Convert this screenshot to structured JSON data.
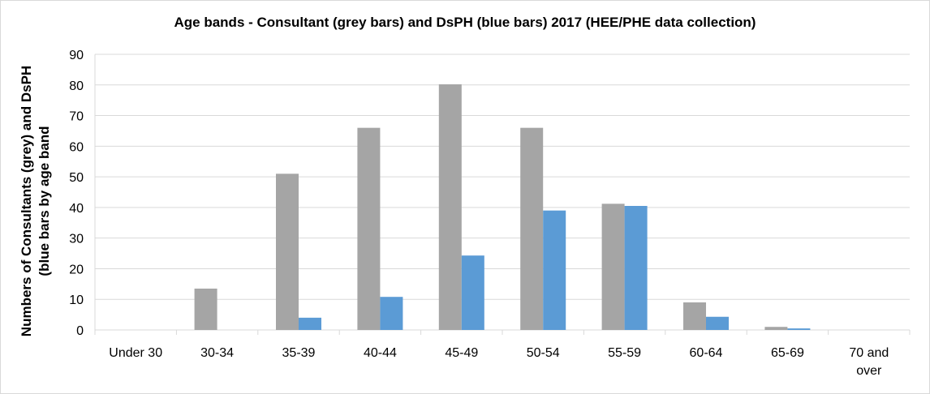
{
  "chart_data": {
    "type": "bar",
    "title": "Age bands - Consultant (grey bars) and DsPH (blue bars) 2017 (HEE/PHE data collection)",
    "ylabel_lines": [
      "Numbers of Consultants (grey) and DsPH",
      "(blue bars by age band"
    ],
    "xlabel": "",
    "categories": [
      "Under 30",
      "30-34",
      "35-39",
      "40-44",
      "45-49",
      "50-54",
      "55-59",
      "60-64",
      "65-69",
      "70 and over"
    ],
    "category_lines": [
      [
        "Under 30"
      ],
      [
        "30-34"
      ],
      [
        "35-39"
      ],
      [
        "40-44"
      ],
      [
        "45-49"
      ],
      [
        "50-54"
      ],
      [
        "55-59"
      ],
      [
        "60-64"
      ],
      [
        "65-69"
      ],
      [
        "70 and",
        "over"
      ]
    ],
    "series": [
      {
        "key": "consultant",
        "color": "#a5a5a5",
        "values": [
          0,
          13.5,
          51,
          66,
          80.2,
          66,
          41.2,
          9,
          1,
          0
        ]
      },
      {
        "key": "dsph",
        "color": "#5b9bd5",
        "values": [
          0,
          0,
          4,
          10.8,
          24.3,
          39,
          40.5,
          4.3,
          0.5,
          0
        ]
      }
    ],
    "ylim": [
      0,
      90
    ],
    "yticks": [
      0,
      10,
      20,
      30,
      40,
      50,
      60,
      70,
      80,
      90
    ],
    "grid": true,
    "legend": "none",
    "colors": {
      "gridline": "#d9d9d9",
      "axis": "#d9d9d9",
      "border": "#d9d9d9"
    }
  }
}
